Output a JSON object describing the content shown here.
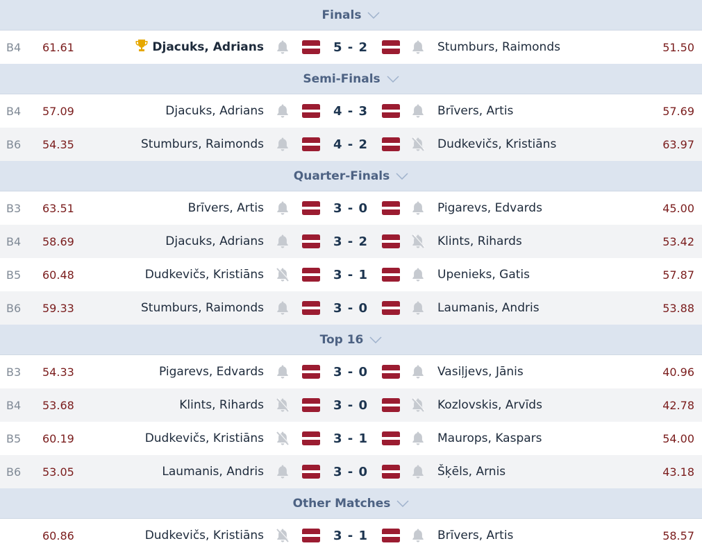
{
  "colors": {
    "header_bg": "#dce4ef",
    "header_text": "#4d6283",
    "alt_row": "#f2f3f5",
    "average": "#7a1c1c",
    "flag_red": "#9b1c31",
    "trophy": "#e6a800",
    "bell": "#c6cad0"
  },
  "sections": [
    {
      "title": "Finals",
      "matches": [
        {
          "board": "B4",
          "avg_left": "61.61",
          "player_left": "Djacuks, Adrians",
          "winner_trophy": true,
          "left_muted": false,
          "score": "5 - 2",
          "right_muted": false,
          "player_right": "Stumburs, Raimonds",
          "avg_right": "51.50"
        }
      ]
    },
    {
      "title": "Semi-Finals",
      "matches": [
        {
          "board": "B4",
          "avg_left": "57.09",
          "player_left": "Djacuks, Adrians",
          "left_muted": false,
          "score": "4 - 3",
          "right_muted": false,
          "player_right": "Brīvers, Artis",
          "avg_right": "57.69"
        },
        {
          "board": "B6",
          "avg_left": "54.35",
          "player_left": "Stumburs, Raimonds",
          "left_muted": false,
          "score": "4 - 2",
          "right_muted": true,
          "player_right": "Dudkevičs, Kristiāns",
          "avg_right": "63.97"
        }
      ]
    },
    {
      "title": "Quarter-Finals",
      "matches": [
        {
          "board": "B3",
          "avg_left": "63.51",
          "player_left": "Brīvers, Artis",
          "left_muted": false,
          "score": "3 - 0",
          "right_muted": false,
          "player_right": "Pigarevs, Edvards",
          "avg_right": "45.00"
        },
        {
          "board": "B4",
          "avg_left": "58.69",
          "player_left": "Djacuks, Adrians",
          "left_muted": false,
          "score": "3 - 2",
          "right_muted": true,
          "player_right": "Klints, Rihards",
          "avg_right": "53.42"
        },
        {
          "board": "B5",
          "avg_left": "60.48",
          "player_left": "Dudkevičs, Kristiāns",
          "left_muted": true,
          "score": "3 - 1",
          "right_muted": false,
          "player_right": "Upenieks, Gatis",
          "avg_right": "57.87"
        },
        {
          "board": "B6",
          "avg_left": "59.33",
          "player_left": "Stumburs, Raimonds",
          "left_muted": false,
          "score": "3 - 0",
          "right_muted": false,
          "player_right": "Laumanis, Andris",
          "avg_right": "53.88"
        }
      ]
    },
    {
      "title": "Top 16",
      "matches": [
        {
          "board": "B3",
          "avg_left": "54.33",
          "player_left": "Pigarevs, Edvards",
          "left_muted": false,
          "score": "3 - 0",
          "right_muted": false,
          "player_right": "Vasiļjevs, Jānis",
          "avg_right": "40.96"
        },
        {
          "board": "B4",
          "avg_left": "53.68",
          "player_left": "Klints, Rihards",
          "left_muted": true,
          "score": "3 - 0",
          "right_muted": true,
          "player_right": "Kozlovskis, Arvīds",
          "avg_right": "42.78"
        },
        {
          "board": "B5",
          "avg_left": "60.19",
          "player_left": "Dudkevičs, Kristiāns",
          "left_muted": true,
          "score": "3 - 1",
          "right_muted": false,
          "player_right": "Maurops, Kaspars",
          "avg_right": "54.00"
        },
        {
          "board": "B6",
          "avg_left": "53.05",
          "player_left": "Laumanis, Andris",
          "left_muted": false,
          "score": "3 - 0",
          "right_muted": false,
          "player_right": "Šķēls, Arnis",
          "avg_right": "43.18"
        }
      ]
    },
    {
      "title": "Other Matches",
      "matches": [
        {
          "board": "",
          "avg_left": "60.86",
          "player_left": "Dudkevičs, Kristiāns",
          "left_muted": true,
          "score": "3 - 1",
          "right_muted": false,
          "player_right": "Brīvers, Artis",
          "avg_right": "58.57"
        }
      ]
    }
  ]
}
